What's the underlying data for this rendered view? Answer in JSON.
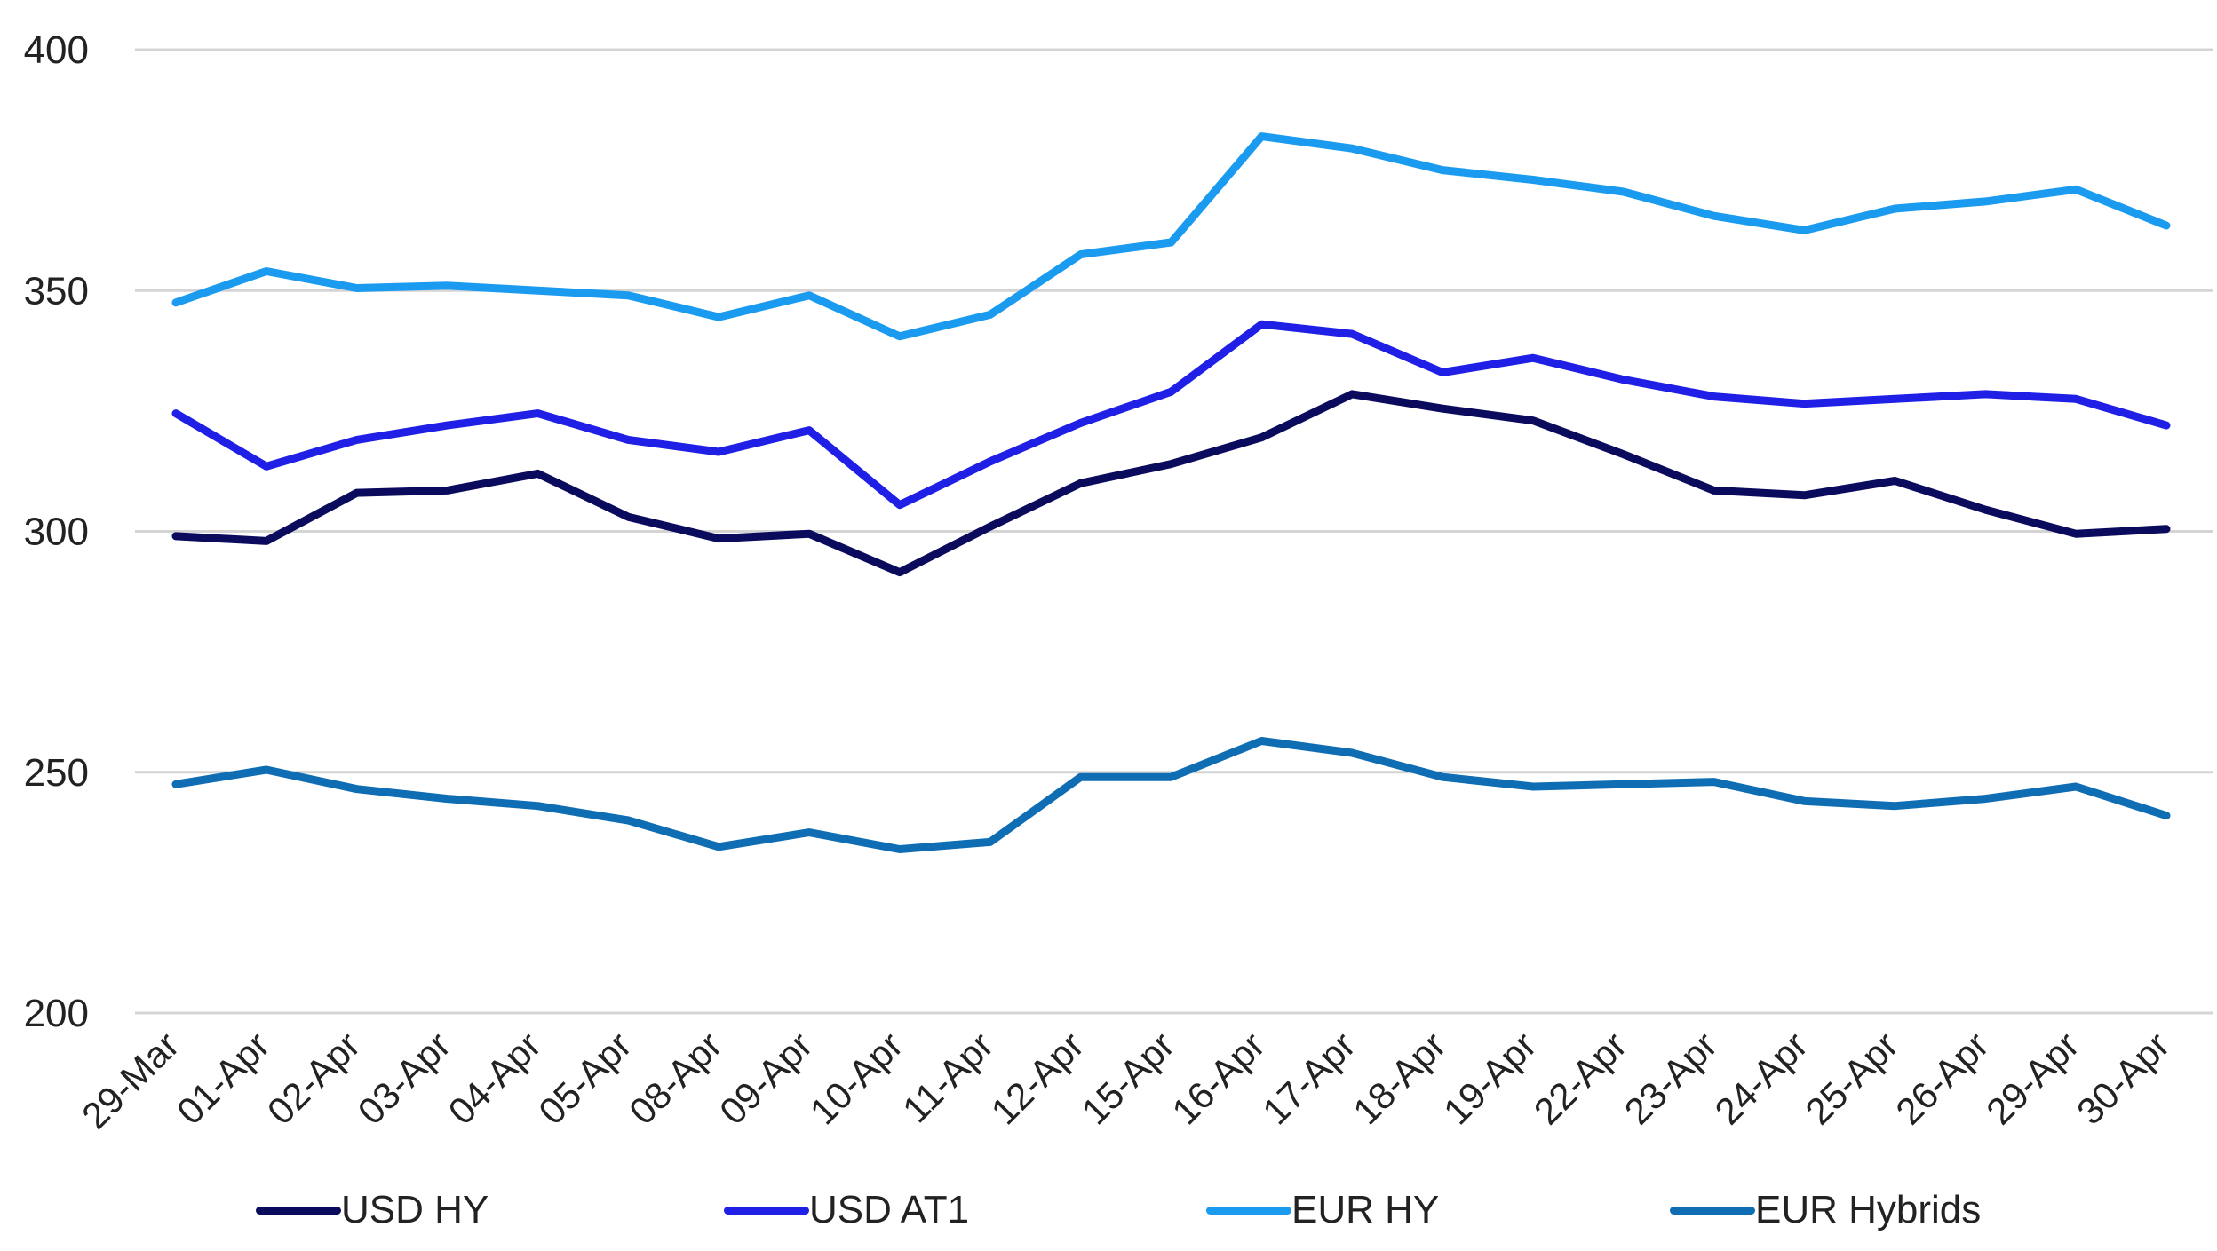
{
  "chart_data": {
    "type": "line",
    "title": "",
    "xlabel": "",
    "ylabel": "",
    "ylim": [
      200,
      400
    ],
    "yticks": [
      200,
      250,
      300,
      350,
      400
    ],
    "grid": true,
    "legend_position": "bottom",
    "categories": [
      "29-Mar",
      "01-Apr",
      "02-Apr",
      "03-Apr",
      "04-Apr",
      "05-Apr",
      "08-Apr",
      "09-Apr",
      "10-Apr",
      "11-Apr",
      "12-Apr",
      "15-Apr",
      "16-Apr",
      "17-Apr",
      "18-Apr",
      "19-Apr",
      "22-Apr",
      "23-Apr",
      "24-Apr",
      "25-Apr",
      "26-Apr",
      "29-Apr",
      "30-Apr"
    ],
    "series": [
      {
        "name": "USD HY",
        "color": "#0b0b5e",
        "values": [
          299,
          298,
          308,
          308.5,
          312,
          303,
          298.5,
          299.5,
          291.5,
          301,
          310,
          314,
          319.5,
          328.5,
          325.5,
          323,
          316,
          308.5,
          307.5,
          310.5,
          304.5,
          299.5,
          300.5
        ]
      },
      {
        "name": "USD AT1",
        "color": "#1f1fe6",
        "values": [
          324.5,
          313.5,
          319,
          322,
          324.5,
          319,
          316.5,
          321,
          305.5,
          314.5,
          322.5,
          329,
          343,
          341,
          333,
          336,
          331.5,
          328,
          326.5,
          327.5,
          328.5,
          327.5,
          322
        ]
      },
      {
        "name": "EUR HY",
        "color": "#1a9bf0",
        "values": [
          347.5,
          354,
          350.5,
          351,
          350,
          349,
          344.5,
          349,
          340.5,
          345,
          357.5,
          360,
          382,
          379.5,
          375,
          373,
          370.5,
          365.5,
          362.5,
          367,
          368.5,
          371,
          363.5
        ]
      },
      {
        "name": "EUR Hybrids",
        "color": "#0f6db4",
        "values": [
          247.5,
          250.5,
          246.5,
          244.5,
          243,
          240,
          234.5,
          237.5,
          234,
          235.5,
          249,
          249,
          256.5,
          254,
          249,
          247,
          247.5,
          248,
          244,
          243,
          244.5,
          247,
          241
        ]
      }
    ]
  }
}
